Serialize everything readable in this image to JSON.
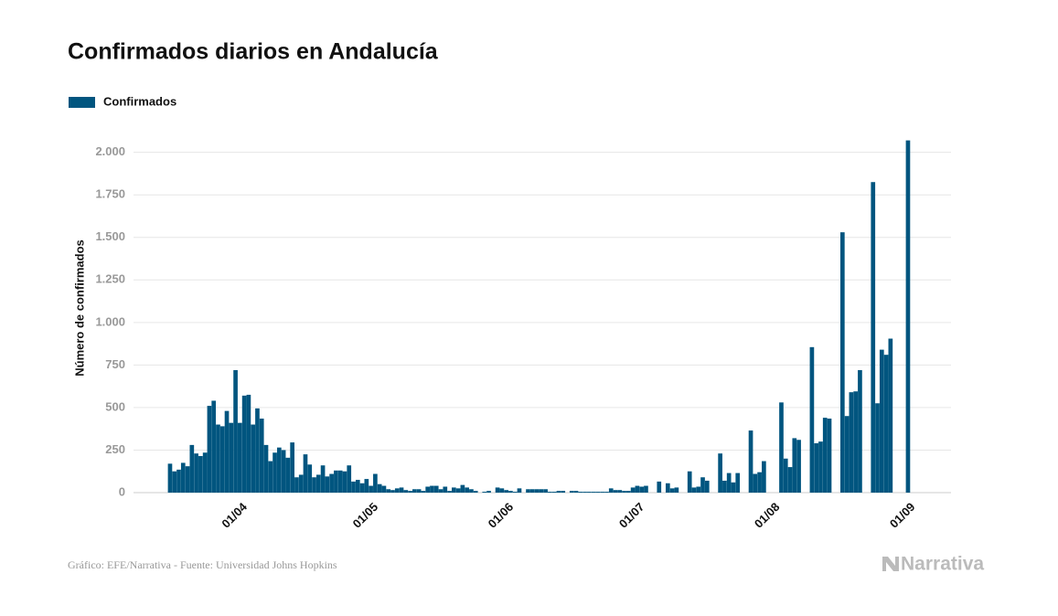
{
  "chart_data": {
    "type": "bar",
    "title": "Confirmados diarios en Andalucía",
    "ylabel": "Número de confirmados",
    "footer": "Gráfico: EFE/Narrativa - Fuente: Universidad Johns Hopkins",
    "logo": "Narrativa",
    "grid": true,
    "legend": "top-left",
    "categories": [
      null,
      null,
      null,
      null,
      null,
      null,
      null,
      null,
      null,
      null,
      null,
      null,
      null,
      null,
      null,
      null,
      "01/04",
      null,
      null,
      null,
      null,
      null,
      null,
      null,
      null,
      null,
      null,
      null,
      null,
      null,
      null,
      null,
      null,
      null,
      null,
      null,
      null,
      null,
      null,
      null,
      null,
      null,
      null,
      null,
      null,
      null,
      "01/05",
      null,
      null,
      null,
      null,
      null,
      null,
      null,
      null,
      null,
      null,
      null,
      null,
      null,
      null,
      null,
      null,
      null,
      null,
      null,
      null,
      null,
      null,
      null,
      null,
      null,
      null,
      null,
      null,
      null,
      null,
      "01/06",
      null,
      null,
      null,
      null,
      null,
      null,
      null,
      null,
      null,
      null,
      null,
      null,
      null,
      null,
      null,
      null,
      null,
      null,
      null,
      null,
      null,
      null,
      null,
      null,
      null,
      null,
      null,
      null,
      null,
      "01/07",
      null,
      null,
      null,
      null,
      null,
      null,
      null,
      null,
      null,
      null,
      null,
      null,
      null,
      null,
      null,
      null,
      null,
      null,
      null,
      null,
      null,
      null,
      null,
      null,
      null,
      null,
      null,
      null,
      null,
      null,
      "01/08",
      null,
      null,
      null,
      null,
      null,
      null,
      null,
      null,
      null,
      null,
      null,
      null,
      null,
      null,
      null,
      null,
      null,
      null,
      null,
      null,
      null,
      null,
      null,
      null,
      null,
      null,
      null,
      null,
      null,
      null,
      "01/09"
    ],
    "series": [
      {
        "name": "Confirmados",
        "color": "#00557f",
        "values": [
          170,
          125,
          135,
          175,
          155,
          280,
          230,
          215,
          235,
          510,
          540,
          400,
          390,
          480,
          410,
          720,
          410,
          570,
          575,
          400,
          495,
          435,
          280,
          185,
          235,
          265,
          250,
          205,
          295,
          90,
          105,
          225,
          165,
          90,
          105,
          160,
          95,
          110,
          130,
          130,
          125,
          160,
          65,
          75,
          55,
          80,
          40,
          110,
          50,
          40,
          20,
          15,
          25,
          30,
          15,
          10,
          20,
          20,
          10,
          35,
          40,
          40,
          20,
          35,
          10,
          30,
          25,
          45,
          30,
          20,
          10,
          0,
          5,
          10,
          0,
          30,
          25,
          15,
          10,
          5,
          25,
          0,
          20,
          20,
          20,
          20,
          20,
          5,
          5,
          10,
          10,
          0,
          10,
          10,
          5,
          5,
          5,
          5,
          5,
          5,
          5,
          25,
          15,
          15,
          10,
          10,
          30,
          40,
          35,
          40,
          0,
          0,
          65,
          0,
          55,
          25,
          30,
          0,
          0,
          125,
          30,
          35,
          90,
          70,
          0,
          0,
          230,
          70,
          115,
          60,
          115,
          0,
          0,
          365,
          110,
          120,
          185,
          0,
          0,
          0,
          530,
          200,
          150,
          320,
          310,
          0,
          0,
          855,
          290,
          300,
          440,
          435,
          0,
          0,
          1530,
          450,
          590,
          595,
          720,
          0,
          0,
          1825,
          525,
          840,
          810,
          905,
          0,
          0,
          0,
          2070
        ]
      }
    ],
    "ylim": [
      0,
      2170
    ],
    "yticks": [
      0,
      250,
      500,
      750,
      {
        "value": 1000,
        "label": "1.000"
      },
      {
        "value": 1250,
        "label": "1.250"
      },
      {
        "value": 1500,
        "label": "1.500"
      },
      {
        "value": 1750,
        "label": "1.750"
      },
      {
        "value": 2000,
        "label": "2.000"
      }
    ]
  }
}
